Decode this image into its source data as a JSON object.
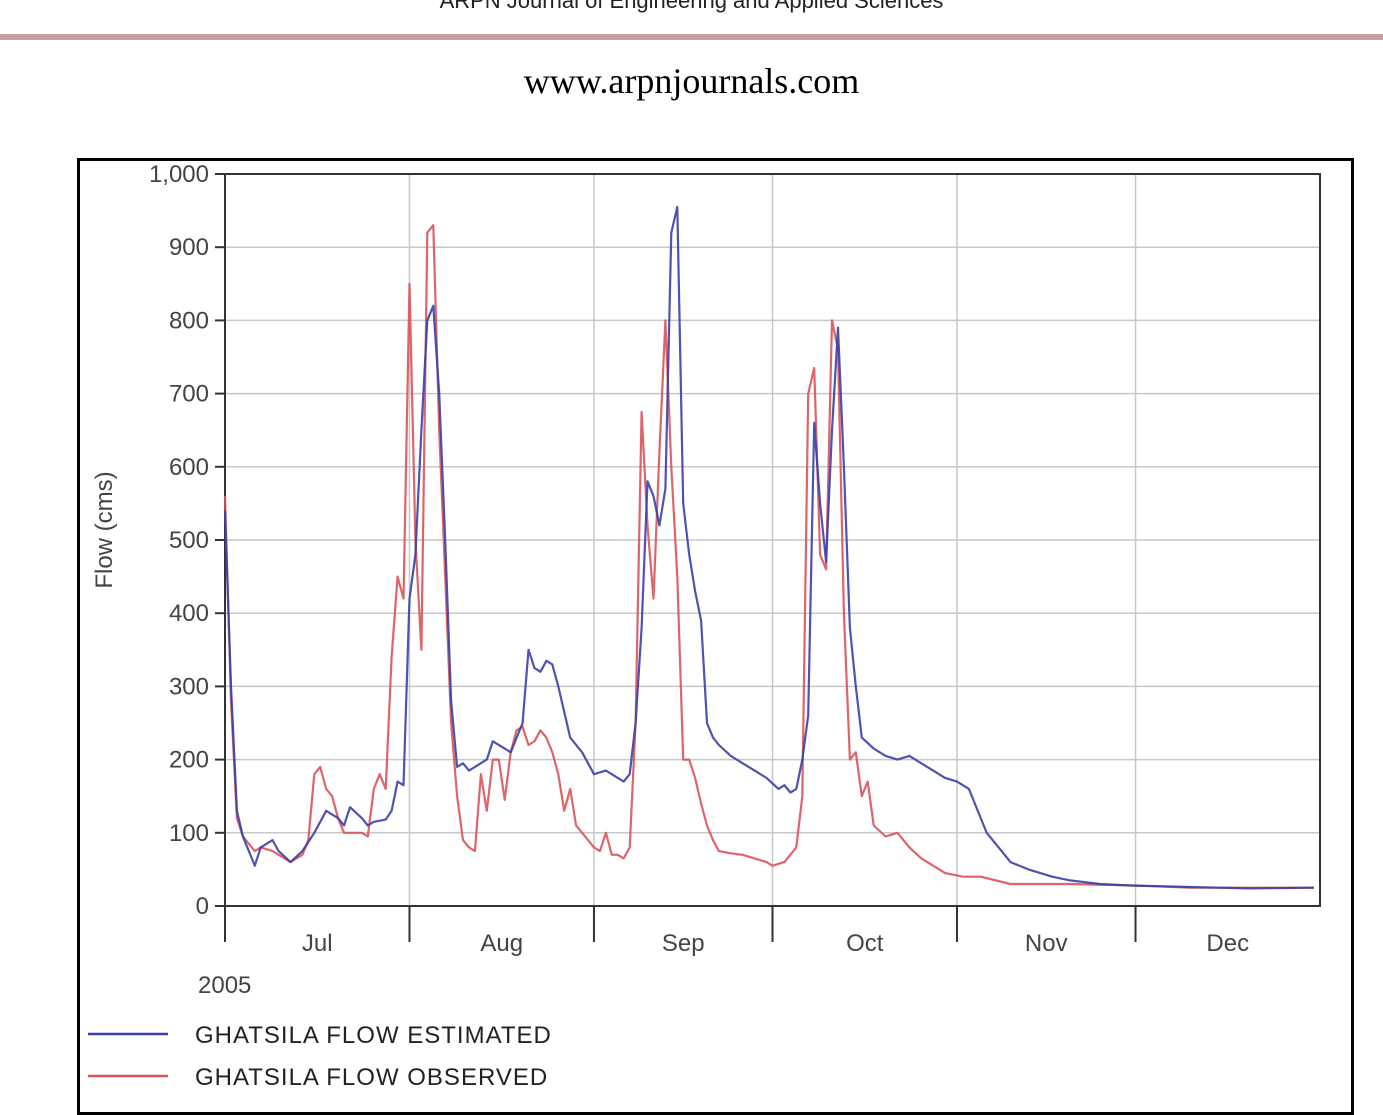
{
  "page": {
    "journal_header": "ARPN Journal of Engineering and Applied Sciences",
    "site_url": "www.arpnjournals.com"
  },
  "colors": {
    "estimated": "#3b3fa8",
    "observed": "#d9545a",
    "grid": "#c8c8c8",
    "axis": "#333333",
    "header_rule": "#c9a0a0"
  },
  "chart_data": {
    "type": "line",
    "title": "",
    "xlabel": "",
    "ylabel": "Flow (cms)",
    "year_label": "2005",
    "ylim": [
      0,
      1000
    ],
    "yticks": [
      0,
      100,
      200,
      300,
      400,
      500,
      600,
      700,
      800,
      900,
      1000
    ],
    "ytick_labels": [
      "0",
      "100",
      "200",
      "300",
      "400",
      "500",
      "600",
      "700",
      "800",
      "900",
      "1,000"
    ],
    "xlim": [
      "2005-07-01",
      "2005-12-31"
    ],
    "month_boundaries": [
      "2005-07-01",
      "2005-08-01",
      "2005-09-01",
      "2005-10-01",
      "2005-11-01",
      "2005-12-01"
    ],
    "month_labels": [
      "Jul",
      "Aug",
      "Sep",
      "Oct",
      "Nov",
      "Dec"
    ],
    "grid": true,
    "legend_position": "bottom-left",
    "series": [
      {
        "name": "GHATSILA FLOW ESTIMATED",
        "color": "#3b3fa8",
        "points": [
          [
            "2005-07-01",
            540
          ],
          [
            "2005-07-02",
            300
          ],
          [
            "2005-07-03",
            130
          ],
          [
            "2005-07-04",
            95
          ],
          [
            "2005-07-06",
            55
          ],
          [
            "2005-07-07",
            80
          ],
          [
            "2005-07-09",
            90
          ],
          [
            "2005-07-10",
            75
          ],
          [
            "2005-07-12",
            60
          ],
          [
            "2005-07-14",
            75
          ],
          [
            "2005-07-16",
            100
          ],
          [
            "2005-07-18",
            130
          ],
          [
            "2005-07-20",
            120
          ],
          [
            "2005-07-21",
            110
          ],
          [
            "2005-07-22",
            135
          ],
          [
            "2005-07-24",
            120
          ],
          [
            "2005-07-25",
            110
          ],
          [
            "2005-07-26",
            115
          ],
          [
            "2005-07-28",
            118
          ],
          [
            "2005-07-29",
            130
          ],
          [
            "2005-07-30",
            170
          ],
          [
            "2005-07-31",
            165
          ],
          [
            "2005-08-01",
            420
          ],
          [
            "2005-08-02",
            480
          ],
          [
            "2005-08-03",
            650
          ],
          [
            "2005-08-04",
            800
          ],
          [
            "2005-08-05",
            820
          ],
          [
            "2005-08-06",
            700
          ],
          [
            "2005-08-07",
            500
          ],
          [
            "2005-08-08",
            280
          ],
          [
            "2005-08-09",
            190
          ],
          [
            "2005-08-10",
            195
          ],
          [
            "2005-08-11",
            185
          ],
          [
            "2005-08-12",
            190
          ],
          [
            "2005-08-14",
            200
          ],
          [
            "2005-08-15",
            225
          ],
          [
            "2005-08-17",
            215
          ],
          [
            "2005-08-18",
            210
          ],
          [
            "2005-08-20",
            250
          ],
          [
            "2005-08-21",
            350
          ],
          [
            "2005-08-22",
            325
          ],
          [
            "2005-08-23",
            320
          ],
          [
            "2005-08-24",
            335
          ],
          [
            "2005-08-25",
            330
          ],
          [
            "2005-08-26",
            300
          ],
          [
            "2005-08-28",
            230
          ],
          [
            "2005-08-30",
            210
          ],
          [
            "2005-09-01",
            180
          ],
          [
            "2005-09-03",
            185
          ],
          [
            "2005-09-06",
            170
          ],
          [
            "2005-09-07",
            180
          ],
          [
            "2005-09-08",
            250
          ],
          [
            "2005-09-09",
            380
          ],
          [
            "2005-09-10",
            580
          ],
          [
            "2005-09-11",
            560
          ],
          [
            "2005-09-12",
            520
          ],
          [
            "2005-09-13",
            570
          ],
          [
            "2005-09-14",
            920
          ],
          [
            "2005-09-15",
            955
          ],
          [
            "2005-09-16",
            550
          ],
          [
            "2005-09-17",
            480
          ],
          [
            "2005-09-18",
            430
          ],
          [
            "2005-09-19",
            390
          ],
          [
            "2005-09-20",
            250
          ],
          [
            "2005-09-21",
            230
          ],
          [
            "2005-09-22",
            220
          ],
          [
            "2005-09-24",
            205
          ],
          [
            "2005-09-26",
            195
          ],
          [
            "2005-09-28",
            185
          ],
          [
            "2005-09-30",
            175
          ],
          [
            "2005-10-02",
            160
          ],
          [
            "2005-10-03",
            165
          ],
          [
            "2005-10-04",
            155
          ],
          [
            "2005-10-05",
            160
          ],
          [
            "2005-10-06",
            200
          ],
          [
            "2005-10-07",
            260
          ],
          [
            "2005-10-08",
            660
          ],
          [
            "2005-10-09",
            550
          ],
          [
            "2005-10-10",
            470
          ],
          [
            "2005-10-11",
            650
          ],
          [
            "2005-10-12",
            790
          ],
          [
            "2005-10-13",
            600
          ],
          [
            "2005-10-14",
            380
          ],
          [
            "2005-10-15",
            300
          ],
          [
            "2005-10-16",
            230
          ],
          [
            "2005-10-18",
            215
          ],
          [
            "2005-10-20",
            205
          ],
          [
            "2005-10-22",
            200
          ],
          [
            "2005-10-24",
            205
          ],
          [
            "2005-10-26",
            195
          ],
          [
            "2005-10-28",
            185
          ],
          [
            "2005-10-30",
            175
          ],
          [
            "2005-11-01",
            170
          ],
          [
            "2005-11-03",
            160
          ],
          [
            "2005-11-04",
            140
          ],
          [
            "2005-11-06",
            100
          ],
          [
            "2005-11-08",
            80
          ],
          [
            "2005-11-10",
            60
          ],
          [
            "2005-11-13",
            50
          ],
          [
            "2005-11-17",
            40
          ],
          [
            "2005-11-20",
            35
          ],
          [
            "2005-11-25",
            30
          ],
          [
            "2005-11-30",
            28
          ],
          [
            "2005-12-05",
            27
          ],
          [
            "2005-12-10",
            26
          ],
          [
            "2005-12-15",
            25
          ],
          [
            "2005-12-20",
            24
          ],
          [
            "2005-12-31",
            25
          ]
        ]
      },
      {
        "name": "GHATSILA FLOW OBSERVED",
        "color": "#d9545a",
        "points": [
          [
            "2005-07-01",
            560
          ],
          [
            "2005-07-02",
            280
          ],
          [
            "2005-07-03",
            120
          ],
          [
            "2005-07-04",
            95
          ],
          [
            "2005-07-06",
            75
          ],
          [
            "2005-07-07",
            80
          ],
          [
            "2005-07-09",
            75
          ],
          [
            "2005-07-10",
            70
          ],
          [
            "2005-07-12",
            60
          ],
          [
            "2005-07-14",
            70
          ],
          [
            "2005-07-15",
            90
          ],
          [
            "2005-07-16",
            180
          ],
          [
            "2005-07-17",
            190
          ],
          [
            "2005-07-18",
            160
          ],
          [
            "2005-07-19",
            150
          ],
          [
            "2005-07-20",
            120
          ],
          [
            "2005-07-21",
            100
          ],
          [
            "2005-07-23",
            100
          ],
          [
            "2005-07-24",
            100
          ],
          [
            "2005-07-25",
            95
          ],
          [
            "2005-07-26",
            160
          ],
          [
            "2005-07-27",
            180
          ],
          [
            "2005-07-28",
            160
          ],
          [
            "2005-07-29",
            340
          ],
          [
            "2005-07-30",
            450
          ],
          [
            "2005-07-31",
            420
          ],
          [
            "2005-08-01",
            850
          ],
          [
            "2005-08-02",
            500
          ],
          [
            "2005-08-03",
            350
          ],
          [
            "2005-08-04",
            920
          ],
          [
            "2005-08-05",
            930
          ],
          [
            "2005-08-06",
            650
          ],
          [
            "2005-08-07",
            450
          ],
          [
            "2005-08-08",
            250
          ],
          [
            "2005-08-09",
            150
          ],
          [
            "2005-08-10",
            90
          ],
          [
            "2005-08-11",
            80
          ],
          [
            "2005-08-12",
            75
          ],
          [
            "2005-08-13",
            180
          ],
          [
            "2005-08-14",
            130
          ],
          [
            "2005-08-15",
            200
          ],
          [
            "2005-08-16",
            200
          ],
          [
            "2005-08-17",
            145
          ],
          [
            "2005-08-18",
            210
          ],
          [
            "2005-08-19",
            240
          ],
          [
            "2005-08-20",
            245
          ],
          [
            "2005-08-21",
            220
          ],
          [
            "2005-08-22",
            225
          ],
          [
            "2005-08-23",
            240
          ],
          [
            "2005-08-24",
            230
          ],
          [
            "2005-08-25",
            210
          ],
          [
            "2005-08-26",
            180
          ],
          [
            "2005-08-27",
            130
          ],
          [
            "2005-08-28",
            160
          ],
          [
            "2005-08-29",
            110
          ],
          [
            "2005-08-30",
            100
          ],
          [
            "2005-09-01",
            80
          ],
          [
            "2005-09-02",
            75
          ],
          [
            "2005-09-03",
            100
          ],
          [
            "2005-09-04",
            70
          ],
          [
            "2005-09-05",
            70
          ],
          [
            "2005-09-06",
            65
          ],
          [
            "2005-09-07",
            80
          ],
          [
            "2005-09-08",
            250
          ],
          [
            "2005-09-09",
            675
          ],
          [
            "2005-09-10",
            520
          ],
          [
            "2005-09-11",
            420
          ],
          [
            "2005-09-12",
            620
          ],
          [
            "2005-09-13",
            800
          ],
          [
            "2005-09-14",
            600
          ],
          [
            "2005-09-15",
            450
          ],
          [
            "2005-09-16",
            200
          ],
          [
            "2005-09-17",
            200
          ],
          [
            "2005-09-18",
            175
          ],
          [
            "2005-09-19",
            140
          ],
          [
            "2005-09-20",
            110
          ],
          [
            "2005-09-21",
            90
          ],
          [
            "2005-09-22",
            75
          ],
          [
            "2005-09-24",
            72
          ],
          [
            "2005-09-26",
            70
          ],
          [
            "2005-09-28",
            65
          ],
          [
            "2005-09-30",
            60
          ],
          [
            "2005-10-01",
            55
          ],
          [
            "2005-10-03",
            60
          ],
          [
            "2005-10-05",
            80
          ],
          [
            "2005-10-06",
            150
          ],
          [
            "2005-10-07",
            700
          ],
          [
            "2005-10-08",
            735
          ],
          [
            "2005-10-09",
            480
          ],
          [
            "2005-10-10",
            460
          ],
          [
            "2005-10-11",
            800
          ],
          [
            "2005-10-12",
            760
          ],
          [
            "2005-10-13",
            400
          ],
          [
            "2005-10-14",
            200
          ],
          [
            "2005-10-15",
            210
          ],
          [
            "2005-10-16",
            150
          ],
          [
            "2005-10-17",
            170
          ],
          [
            "2005-10-18",
            110
          ],
          [
            "2005-10-20",
            95
          ],
          [
            "2005-10-22",
            100
          ],
          [
            "2005-10-24",
            80
          ],
          [
            "2005-10-26",
            65
          ],
          [
            "2005-10-28",
            55
          ],
          [
            "2005-10-30",
            45
          ],
          [
            "2005-11-02",
            40
          ],
          [
            "2005-11-05",
            40
          ],
          [
            "2005-11-10",
            30
          ],
          [
            "2005-11-20",
            30
          ],
          [
            "2005-12-01",
            28
          ],
          [
            "2005-12-10",
            25
          ],
          [
            "2005-12-20",
            25
          ],
          [
            "2005-12-31",
            25
          ]
        ]
      }
    ]
  },
  "legend": {
    "items": [
      {
        "label": "GHATSILA FLOW ESTIMATED",
        "color": "#3b3fa8"
      },
      {
        "label": "GHATSILA FLOW OBSERVED",
        "color": "#d9545a"
      }
    ]
  }
}
